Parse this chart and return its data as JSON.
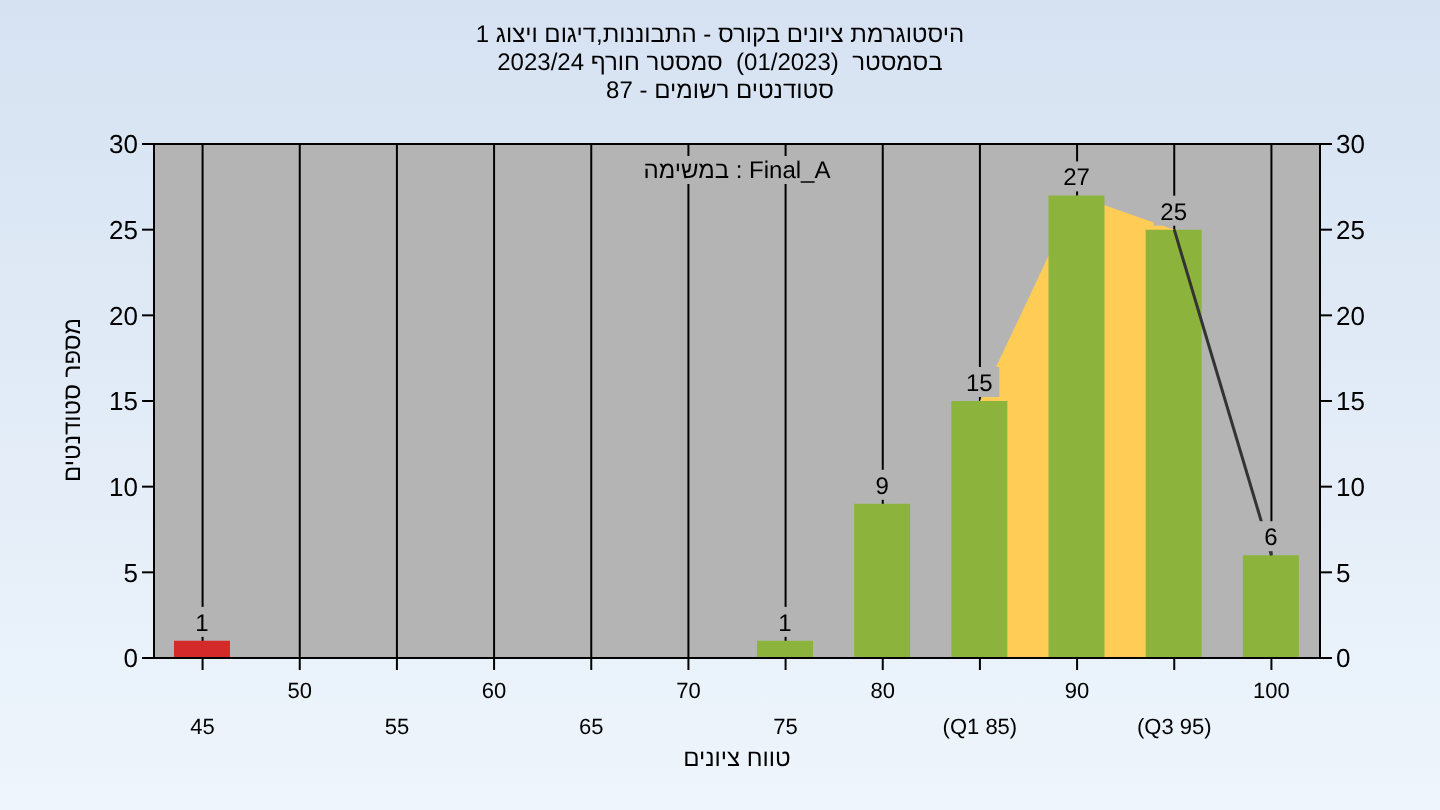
{
  "chart_data": {
    "type": "bar",
    "title": "היסטוגרמת ציונים בקורס - התבוננות,דיגום ויצוג 1",
    "subtitle": "בסמסטר  (01/2023)  סמסטר חורף 2023/24\nסטודנטים רשומים - 87",
    "xlabel": "טווח ציונים",
    "ylabel": "מספר סטודנטים",
    "annotations": [
      "במשימה : Final_A"
    ],
    "categories": [
      "45",
      "50",
      "55",
      "60",
      "65",
      "70",
      "75",
      "80",
      "(Q1 85)",
      "90",
      "(Q3 95)",
      "100"
    ],
    "series": [
      {
        "type": "area",
        "color": "#ffcc55",
        "values": [
          null,
          null,
          null,
          null,
          null,
          null,
          null,
          null,
          15,
          27,
          25,
          null
        ]
      },
      {
        "type": "line",
        "color": "#333333",
        "values": [
          null,
          null,
          null,
          null,
          null,
          null,
          null,
          null,
          null,
          null,
          25,
          6
        ]
      },
      {
        "colors": [
          "#d42a2a",
          "#8cb43c",
          "#8cb43c",
          "#8cb43c",
          "#8cb43c",
          "#8cb43c",
          "#8cb43c",
          "#8cb43c",
          "#8cb43c",
          "#8cb43c",
          "#8cb43c",
          "#8cb43c"
        ],
        "values": [
          1,
          0,
          0,
          0,
          0,
          0,
          1,
          9,
          15,
          27,
          25,
          6
        ],
        "value_labels": [
          "1",
          null,
          null,
          null,
          null,
          null,
          "1",
          "9",
          "15",
          "27",
          "25",
          "6"
        ]
      }
    ],
    "ylim": [
      0,
      30
    ],
    "yticks": [
      0,
      5,
      10,
      15,
      20,
      25,
      30
    ],
    "y2lim": [
      0,
      30
    ],
    "y2ticks": [
      0,
      5,
      10,
      15,
      20,
      25,
      30
    ],
    "grid": true,
    "legend": false
  }
}
